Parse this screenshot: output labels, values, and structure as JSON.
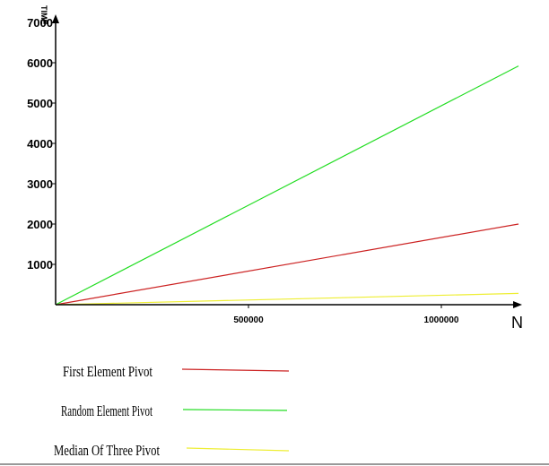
{
  "chart_data": {
    "type": "line",
    "title": "",
    "xlabel": "N",
    "ylabel": "TIME",
    "x_ticks": [
      500000,
      1000000
    ],
    "x_tick_labels": [
      "500000",
      "1000000"
    ],
    "y_ticks": [
      1000,
      2000,
      3000,
      4000,
      5000,
      6000,
      7000
    ],
    "y_tick_labels": [
      "1000",
      "2000",
      "3000",
      "4000",
      "5000",
      "6000",
      "7000"
    ],
    "xlim": [
      0,
      1200000
    ],
    "ylim": [
      0,
      7200
    ],
    "grid": false,
    "legend_position": "bottom-left",
    "series": [
      {
        "name": "First Element Pivot",
        "color": "#cc2222",
        "x": [
          0,
          1200000
        ],
        "y": [
          0,
          2000
        ]
      },
      {
        "name": "Random Element Pivot",
        "color": "#22dd22",
        "x": [
          0,
          1200000
        ],
        "y": [
          0,
          5920
        ]
      },
      {
        "name": "Median Of Three Pivot",
        "color": "#eeee33",
        "x": [
          0,
          1200000
        ],
        "y": [
          0,
          280
        ]
      }
    ]
  }
}
